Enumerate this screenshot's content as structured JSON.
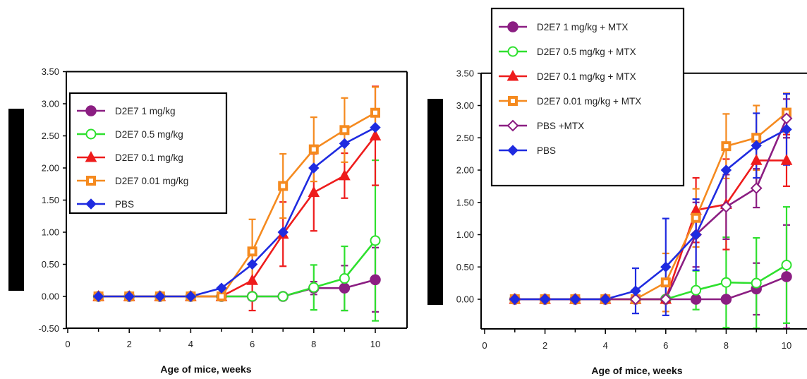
{
  "chart_data": [
    {
      "type": "line",
      "xlabel": "Age of mice, weeks",
      "ylabel": "",
      "xlim": [
        0,
        11
      ],
      "ylim": [
        -0.5,
        3.5
      ],
      "xticks": [
        "0",
        "2",
        "4",
        "6",
        "8",
        "10"
      ],
      "yticks": [
        "-0.50",
        "0.00",
        "0.50",
        "1.00",
        "1.50",
        "2.00",
        "2.50",
        "3.00",
        "3.50"
      ],
      "legend_position": "top-left",
      "x": [
        1,
        2,
        3,
        4,
        5,
        6,
        7,
        8,
        9,
        10
      ],
      "series": [
        {
          "name": "D2E7 1 mg/kg",
          "color": "#8B1E82",
          "marker": "circle-filled",
          "values": [
            0,
            0,
            0,
            0,
            0,
            0,
            0,
            0.13,
            0.13,
            0.26
          ],
          "errors": [
            0,
            0,
            0,
            0,
            0,
            0,
            0,
            0.1,
            0.35,
            0.5
          ]
        },
        {
          "name": "D2E7 0.5 mg/kg",
          "color": "#2EE02E",
          "marker": "circle-open",
          "values": [
            0,
            0,
            0,
            0,
            0,
            0,
            0,
            0.14,
            0.28,
            0.87
          ],
          "errors": [
            0,
            0,
            0,
            0,
            0,
            0,
            0,
            0.35,
            0.5,
            1.25
          ]
        },
        {
          "name": "D2E7 0.1 mg/kg",
          "color": "#EE1C1C",
          "marker": "triangle-filled",
          "values": [
            0,
            0,
            0,
            0,
            0,
            0.25,
            0.97,
            1.62,
            1.88,
            2.5
          ],
          "errors": [
            0,
            0,
            0,
            0,
            0,
            0.47,
            0.5,
            0.6,
            0.35,
            0.77
          ]
        },
        {
          "name": "D2E7 0.01 mg/kg",
          "color": "#F58A1F",
          "marker": "square-open",
          "values": [
            0,
            0,
            0,
            0,
            0,
            0.7,
            1.72,
            2.29,
            2.59,
            2.86
          ],
          "errors": [
            0,
            0,
            0,
            0,
            0,
            0.5,
            0.5,
            0.5,
            0.5,
            0.4
          ]
        },
        {
          "name": "PBS",
          "color": "#1F2BE0",
          "marker": "diamond-filled",
          "values": [
            0,
            0,
            0,
            0,
            0.13,
            0.5,
            1.0,
            2.0,
            2.38,
            2.63
          ],
          "errors": [
            0,
            0,
            0,
            0,
            0,
            0,
            0,
            0,
            0,
            0
          ]
        }
      ]
    },
    {
      "type": "line",
      "xlabel": "Age of mice, weeks",
      "ylabel": "",
      "xlim": [
        0,
        11
      ],
      "ylim": [
        -0.5,
        3.5
      ],
      "xticks": [
        "0",
        "2",
        "4",
        "6",
        "8",
        "10"
      ],
      "yticks": [
        "0.00",
        "0.50",
        "1.00",
        "1.50",
        "2.00",
        "2.50",
        "3.00",
        "3.50"
      ],
      "legend_position": "top-left",
      "x": [
        1,
        2,
        3,
        4,
        5,
        6,
        7,
        8,
        9,
        10
      ],
      "series": [
        {
          "name": "D2E7 1 mg/kg + MTX",
          "color": "#8B1E82",
          "marker": "circle-filled",
          "values": [
            0,
            0,
            0,
            0,
            0,
            0,
            0,
            0,
            0.16,
            0.35
          ],
          "errors": [
            0,
            0,
            0,
            0,
            0,
            0,
            0,
            0,
            0.4,
            0.8
          ]
        },
        {
          "name": "D2E7 0.5 mg/kg + MTX",
          "color": "#2EE02E",
          "marker": "circle-open",
          "values": [
            0,
            0,
            0,
            0,
            0,
            0,
            0.14,
            0.26,
            0.25,
            0.53
          ],
          "errors": [
            0,
            0,
            0,
            0,
            0,
            0,
            0.3,
            0.7,
            0.7,
            0.9
          ]
        },
        {
          "name": "D2E7 0.1 mg/kg + MTX",
          "color": "#EE1C1C",
          "marker": "triangle-filled",
          "values": [
            0,
            0,
            0,
            0,
            0,
            0,
            1.38,
            1.47,
            2.15,
            2.15
          ],
          "errors": [
            0,
            0,
            0,
            0,
            0,
            0,
            0.5,
            0.7,
            0.4,
            0.4
          ]
        },
        {
          "name": "D2E7 0.01 mg/kg + MTX",
          "color": "#F58A1F",
          "marker": "square-open",
          "values": [
            0,
            0,
            0,
            0,
            0,
            0.26,
            1.26,
            2.37,
            2.5,
            2.89
          ],
          "errors": [
            0,
            0,
            0,
            0,
            0,
            0.45,
            0.45,
            0.5,
            0.5,
            0.3
          ]
        },
        {
          "name": "PBS +MTX",
          "color": "#8B1E82",
          "marker": "diamond-open",
          "values": [
            0,
            0,
            0,
            0,
            0,
            0,
            1.0,
            1.43,
            1.72,
            2.8
          ],
          "errors": [
            0,
            0,
            0,
            0,
            0,
            0,
            0.5,
            0.5,
            0.3,
            0.3
          ]
        },
        {
          "name": "PBS",
          "color": "#1F2BE0",
          "marker": "diamond-filled",
          "values": [
            0,
            0,
            0,
            0,
            0.13,
            0.5,
            1.0,
            2.0,
            2.38,
            2.63
          ],
          "errors": [
            0,
            0,
            0,
            0,
            0.35,
            0.75,
            0.55,
            0,
            0.5,
            0.55
          ]
        }
      ]
    }
  ]
}
